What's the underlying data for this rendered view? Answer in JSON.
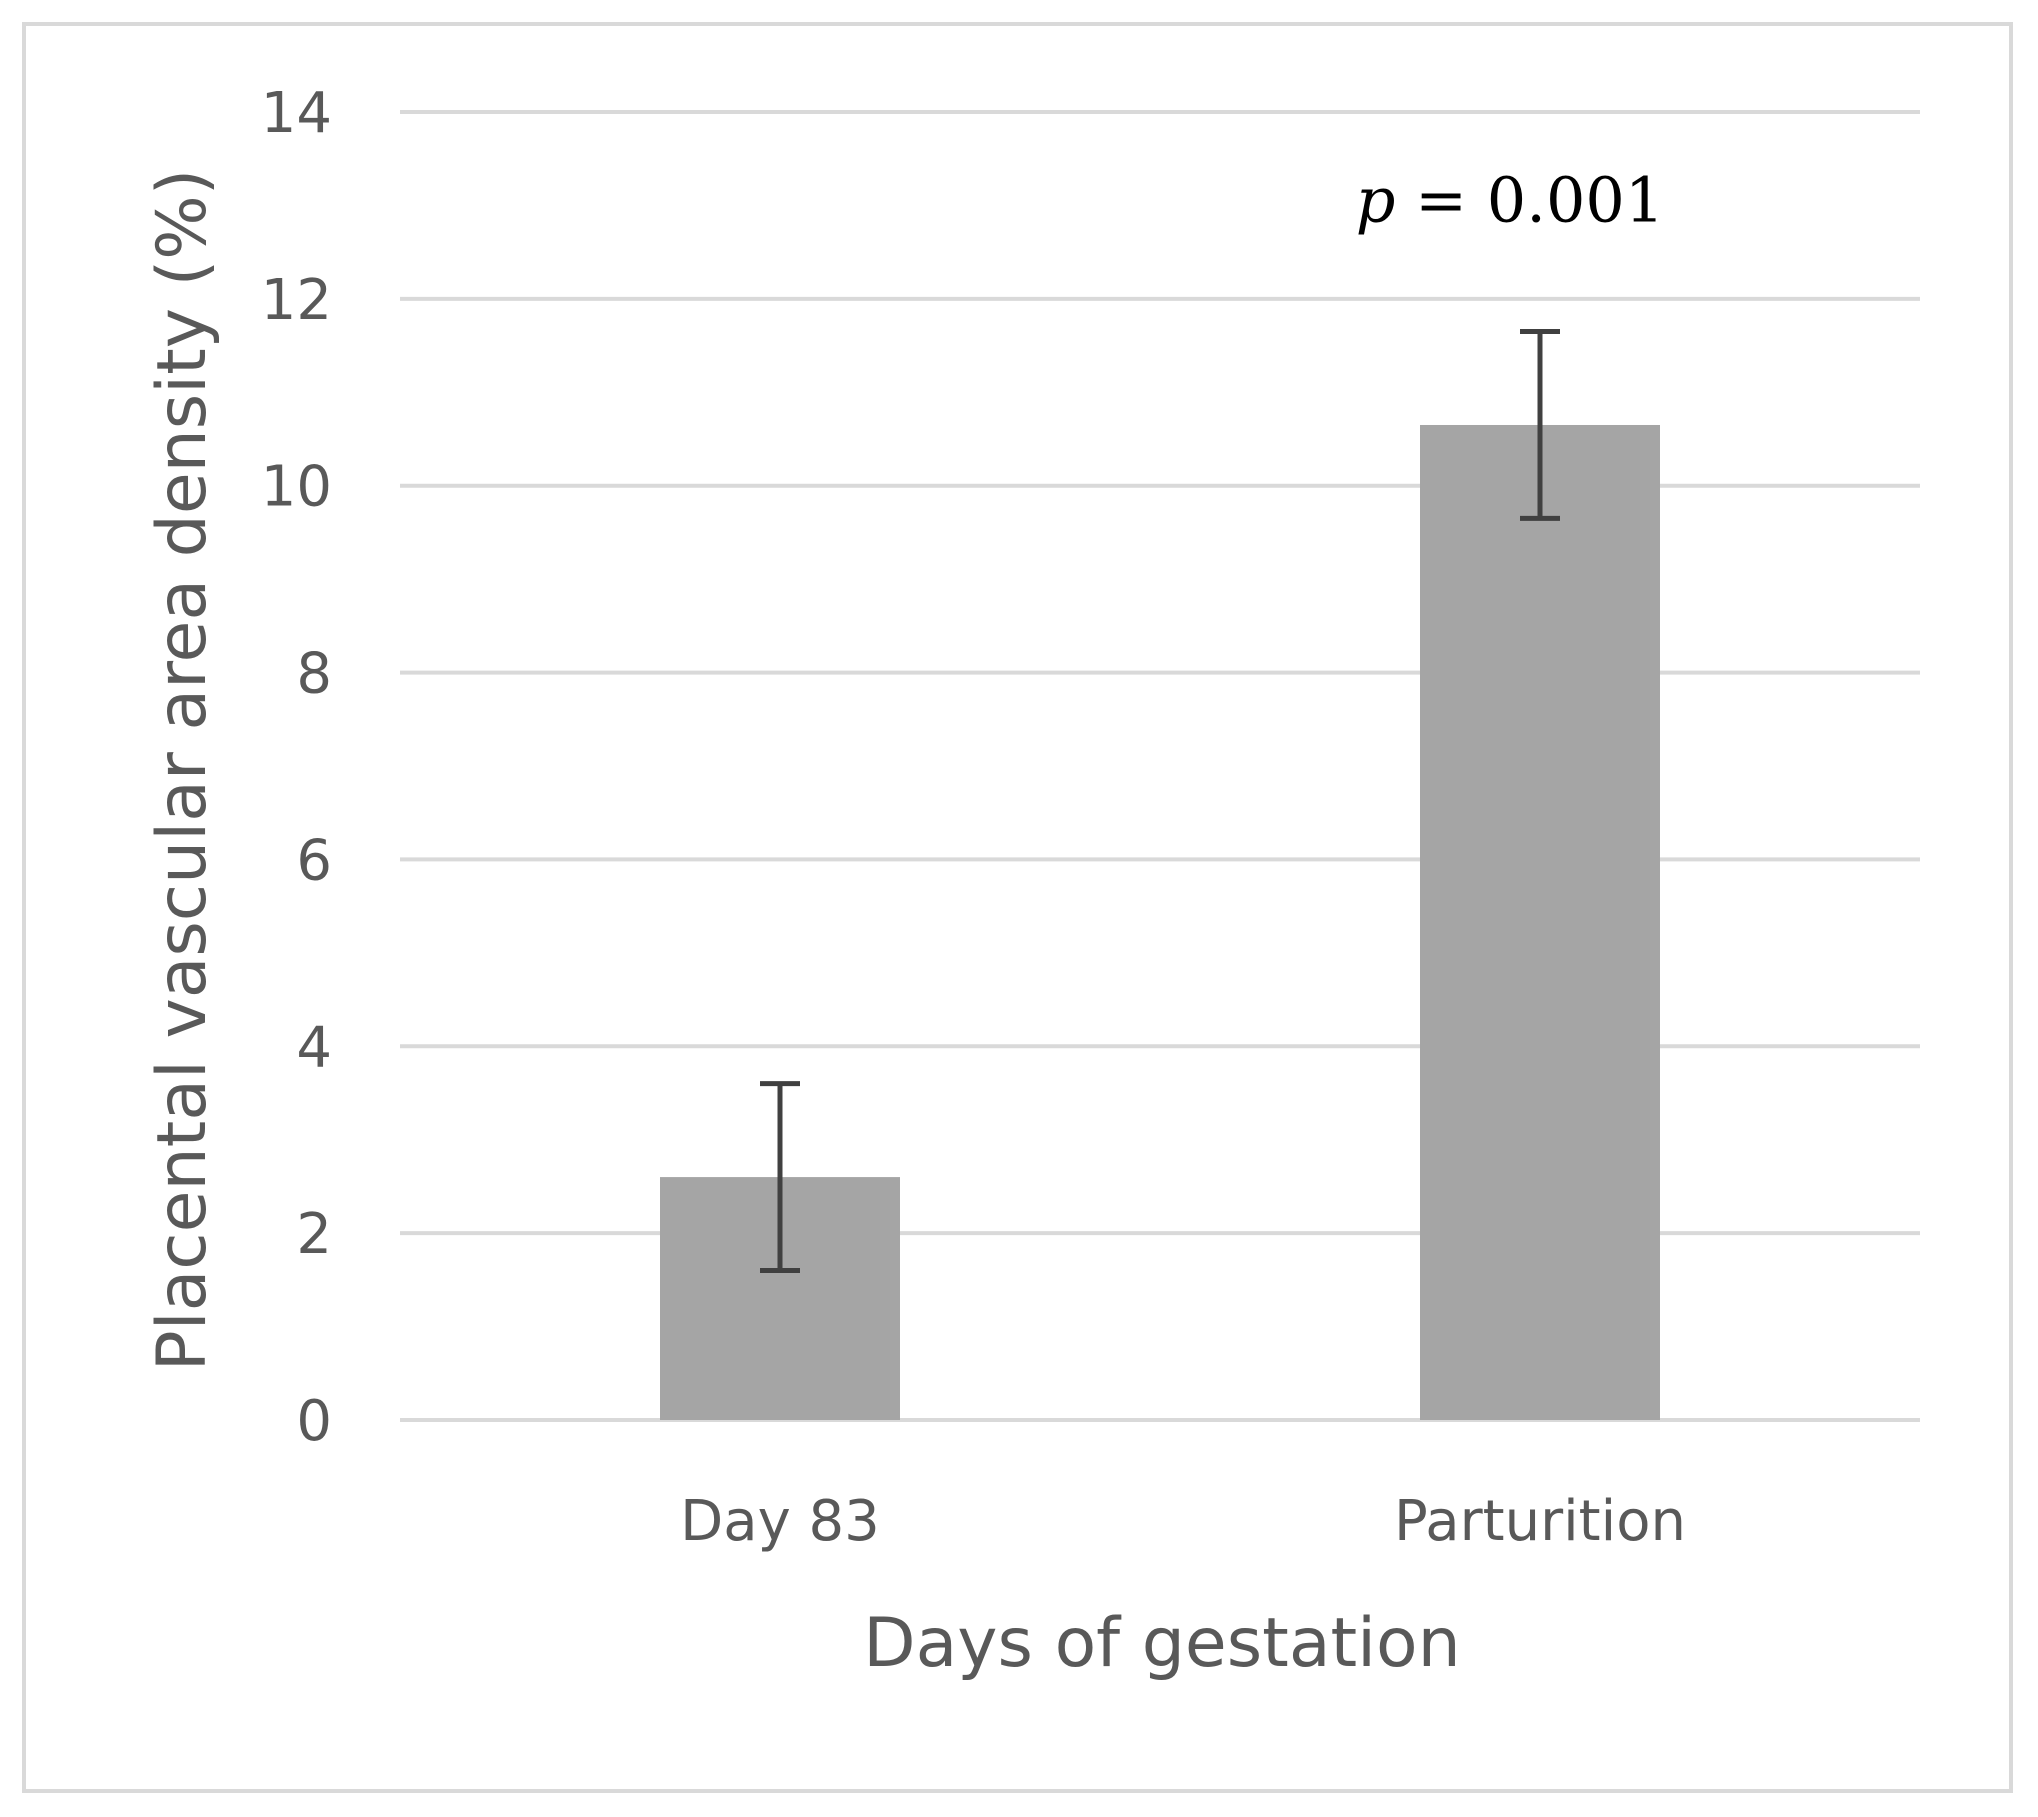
{
  "chart_data": {
    "type": "bar",
    "title": "",
    "categories": [
      "Day 83",
      "Parturition"
    ],
    "values": [
      2.6,
      10.65
    ],
    "error_bars": [
      1.0,
      1.0
    ],
    "xlabel": "Days of gestation",
    "ylabel": "Placental vascular area density (%)",
    "ylim": [
      0,
      14
    ],
    "yticks": [
      0,
      2,
      4,
      6,
      8,
      10,
      12,
      14
    ],
    "grid": true,
    "annotation": {
      "symbol": "p",
      "text": " = 0.001",
      "category": "Parturition"
    },
    "colors": {
      "bar": "#a5a5a5",
      "error_bar": "#404040",
      "grid": "#d9d9d9",
      "text": "#595959"
    }
  }
}
